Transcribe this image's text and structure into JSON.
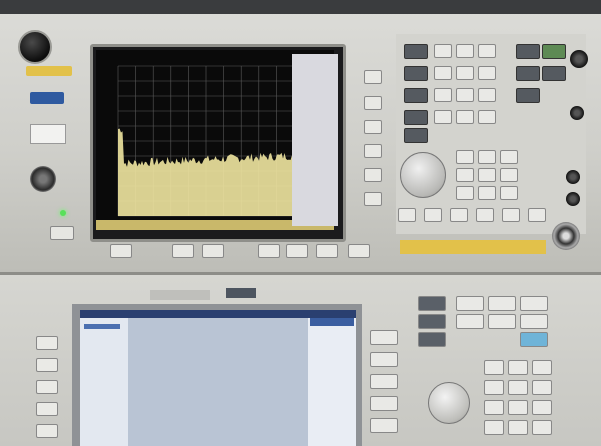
{
  "scene": {
    "colors": {
      "trace": "#f0e6a0",
      "grid": "#5a5a5a",
      "screen_bg": "#0a0a0a",
      "led": "#58e05a",
      "warning": "#e2c14a",
      "bottom_screen": "#b9c4d4"
    },
    "icons": [
      "power-knob",
      "rotary-knob",
      "rf-connector",
      "status-led"
    ]
  }
}
